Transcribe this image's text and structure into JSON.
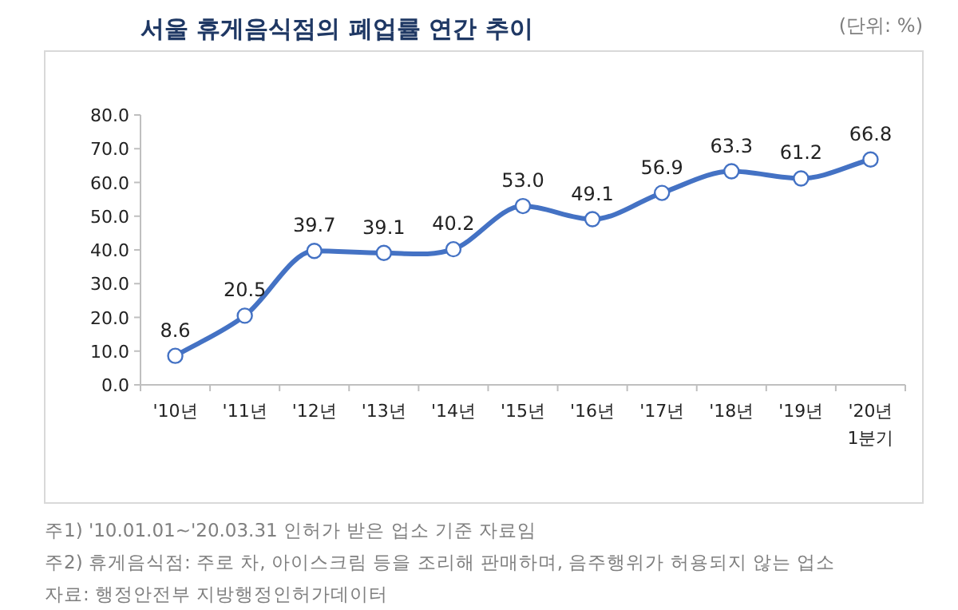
{
  "chart_data": {
    "type": "line",
    "title": "서울 휴게음식점의 폐업률 연간 추이",
    "categories": [
      "'10년",
      "'11년",
      "'12년",
      "'13년",
      "'14년",
      "'15년",
      "'16년",
      "'17년",
      "'18년",
      "'19년",
      "'20년 1분기"
    ],
    "series": [
      {
        "color": "#4472c4",
        "values": [
          8.6,
          20.5,
          39.7,
          39.1,
          40.2,
          53.0,
          49.1,
          56.9,
          63.3,
          61.2,
          66.8
        ]
      }
    ],
    "ylim": [
      0,
      80
    ],
    "yticks": [
      {
        "value": 0,
        "label": "0.0"
      },
      {
        "value": 10,
        "label": "10.0"
      },
      {
        "value": 20,
        "label": "20.0"
      },
      {
        "value": 30,
        "label": "30.0"
      },
      {
        "value": 40,
        "label": "40.0"
      },
      {
        "value": 50,
        "label": "50.0"
      },
      {
        "value": 60,
        "label": "60.0"
      },
      {
        "value": 70,
        "label": "70.0"
      },
      {
        "value": 80,
        "label": "80.0"
      }
    ],
    "value_labels": [
      "8.6",
      "20.5",
      "39.7",
      "39.1",
      "40.2",
      "53.0",
      "49.1",
      "56.9",
      "63.3",
      "61.2",
      "66.8"
    ],
    "marker": "circle",
    "grid": false,
    "annotations": [
      "(단위: %)",
      "주1) '10.01.01~'20.03.31 인허가 받은 업소 기준 자료임",
      "주2) 휴게음식점: 주로 차, 아이스크림 등을 조리해 판매하며, 음주행위가 허용되지 않는 업소",
      "자료: 행정안전부 지방행정인허가데이터"
    ]
  }
}
